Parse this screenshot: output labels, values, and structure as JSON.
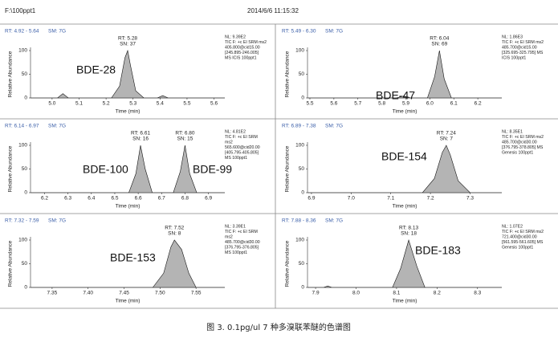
{
  "file": "F:\\100ppt1",
  "datetime": "2014/6/6 11:15:32",
  "caption": "图 3. 0.1pg/ul 7 种多溴联苯醚的色谱图",
  "chart_data": [
    {
      "type": "line",
      "range_label": "RT: 4.92 - 5.64",
      "sm_label": "SM: 7G",
      "ylabel": "Relative Abundance",
      "xlabel": "Time (min)",
      "color": "#b4b4b4",
      "xlim": [
        4.92,
        5.64
      ],
      "xticks": [
        {
          "value": 5,
          "label": "5.0"
        },
        5.1,
        5.2,
        5.3,
        5.4,
        5.5,
        5.6
      ],
      "ylim": [
        0,
        100
      ],
      "yticks": [
        0,
        50,
        100
      ],
      "x": [
        4.92,
        5.02,
        5.04,
        5.06,
        5.22,
        5.25,
        5.27,
        5.28,
        5.29,
        5.31,
        5.34,
        5.39,
        5.41,
        5.43,
        5.64
      ],
      "values": [
        0,
        0,
        9,
        0,
        0,
        25,
        85,
        100,
        70,
        15,
        0,
        0,
        5,
        0,
        0
      ],
      "peaks": [
        {
          "rt": 5.28,
          "rt_label": "RT: 5.28",
          "sn_label": "SN: 37"
        }
      ],
      "compounds": [
        "BDE-28"
      ],
      "info": [
        "NL: 9.39E2",
        "TIC F: +c EI SRM ms2",
        "405.800@cid15.00",
        "[245.895-246.005]",
        "MS ICIS 100ppt1"
      ]
    },
    {
      "type": "line",
      "range_label": "RT: 5.49 - 6.30",
      "sm_label": "SM: 7G",
      "ylabel": "Relative Abundance",
      "xlabel": "Time (min)",
      "color": "#b4b4b4",
      "xlim": [
        5.49,
        6.3
      ],
      "xticks": [
        5.5,
        5.6,
        5.7,
        5.8,
        5.9,
        {
          "value": 6,
          "label": "6.0"
        },
        6.1,
        6.2
      ],
      "ylim": [
        0,
        100
      ],
      "yticks": [
        0,
        50,
        100
      ],
      "x": [
        5.49,
        5.86,
        5.89,
        5.92,
        5.99,
        6.02,
        6.04,
        6.06,
        6.09,
        6.3
      ],
      "values": [
        0,
        0,
        4,
        0,
        0,
        45,
        100,
        40,
        0,
        0
      ],
      "peaks": [
        {
          "rt": 6.04,
          "rt_label": "RT: 6.04",
          "sn_label": "SN: 69"
        }
      ],
      "compounds": [
        "BDE-47"
      ],
      "info": [
        "NL: 1.86E3",
        "TIC F: +c EI SRM ms2",
        "485.700@cid15.00",
        "[325.695-325.795] MS",
        "ICIS 100ppt1"
      ]
    },
    {
      "type": "line",
      "range_label": "RT: 6.14 - 6.97",
      "sm_label": "SM: 7G",
      "ylabel": "Relative Abundance",
      "xlabel": "Time (min)",
      "color": "#b4b4b4",
      "xlim": [
        6.14,
        6.97
      ],
      "xticks": [
        6.2,
        6.3,
        6.4,
        6.5,
        6.6,
        6.7,
        6.8,
        6.9
      ],
      "ylim": [
        0,
        100
      ],
      "yticks": [
        0,
        50,
        100
      ],
      "x": [
        6.14,
        6.56,
        6.59,
        6.61,
        6.63,
        6.66,
        6.75,
        6.78,
        6.8,
        6.82,
        6.85,
        6.97
      ],
      "values": [
        0,
        0,
        40,
        100,
        50,
        0,
        0,
        45,
        100,
        40,
        0,
        0
      ],
      "peaks": [
        {
          "rt": 6.61,
          "rt_label": "RT: 6.61",
          "sn_label": "SN: 16"
        },
        {
          "rt": 6.8,
          "rt_label": "RT: 6.80",
          "sn_label": "SN: 15"
        }
      ],
      "compounds": [
        "BDE-100",
        "BDE-99"
      ],
      "info": [
        "NL: 4.81E2",
        "TIC F: +c EI SRM",
        "ms2",
        "565.600@cid20.00",
        "[405.795-405.805]",
        "MS 100ppt1"
      ]
    },
    {
      "type": "line",
      "range_label": "RT: 6.89 - 7.38",
      "sm_label": "SM: 7G",
      "ylabel": "Relative Abundance",
      "xlabel": "Time (min)",
      "color": "#b4b4b4",
      "xlim": [
        6.89,
        7.38
      ],
      "xticks": [
        6.9,
        {
          "value": 7,
          "label": "7.0"
        },
        7.1,
        7.2,
        7.3
      ],
      "ylim": [
        0,
        100
      ],
      "yticks": [
        0,
        50,
        100
      ],
      "x": [
        6.89,
        7.18,
        7.21,
        7.23,
        7.24,
        7.25,
        7.27,
        7.3,
        7.38
      ],
      "values": [
        0,
        0,
        30,
        85,
        100,
        80,
        25,
        0,
        0
      ],
      "peaks": [
        {
          "rt": 7.24,
          "rt_label": "RT: 7.24",
          "sn_label": "SN: 7"
        }
      ],
      "compounds": [
        "BDE-154"
      ],
      "info": [
        "NL: 8.35E1",
        "TIC F: +c EI SRM ms2",
        "485.700@cid30.00",
        "[376.795-378.805] MS",
        "Genesis 100ppt1"
      ]
    },
    {
      "type": "line",
      "range_label": "RT: 7.32 - 7.59",
      "sm_label": "SM: 7G",
      "ylabel": "Relative Abundance",
      "xlabel": "Time (min)",
      "color": "#b4b4b4",
      "xlim": [
        7.32,
        7.59
      ],
      "xticks": [
        7.35,
        {
          "value": 7.4,
          "label": "7.40"
        },
        7.45,
        {
          "value": 7.5,
          "label": "7.50"
        },
        7.55
      ],
      "ylim": [
        0,
        100
      ],
      "yticks": [
        0,
        50,
        100
      ],
      "x": [
        7.32,
        7.49,
        7.505,
        7.515,
        7.52,
        7.53,
        7.54,
        7.55,
        7.59
      ],
      "values": [
        0,
        0,
        30,
        85,
        100,
        80,
        30,
        0,
        0
      ],
      "peaks": [
        {
          "rt": 7.52,
          "rt_label": "RT: 7.52",
          "sn_label": "SN: 8"
        }
      ],
      "compounds": [
        "BDE-153"
      ],
      "info": [
        "NL: 3.39E1",
        "TIC F: +c EI SRM",
        "ms2",
        "485.700@cid30.00",
        "[376.795-376.805]",
        "MS 100ppt1"
      ]
    },
    {
      "type": "line",
      "range_label": "RT: 7.88 - 8.36",
      "sm_label": "SM: 7G",
      "ylabel": "Relative Abundance",
      "xlabel": "Time (min)",
      "color": "#b4b4b4",
      "xlim": [
        7.88,
        8.36
      ],
      "xticks": [
        7.9,
        {
          "value": 8,
          "label": "8.0"
        },
        8.1,
        8.2,
        8.3
      ],
      "ylim": [
        0,
        100
      ],
      "yticks": [
        0,
        50,
        100
      ],
      "x": [
        7.88,
        7.92,
        7.93,
        7.94,
        8.09,
        8.11,
        8.13,
        8.15,
        8.17,
        8.36
      ],
      "values": [
        0,
        0,
        3,
        0,
        0,
        40,
        100,
        45,
        0,
        0
      ],
      "peaks": [
        {
          "rt": 8.13,
          "rt_label": "RT: 8.13",
          "sn_label": "SN: 18"
        }
      ],
      "compounds": [
        "BDE-183"
      ],
      "info": [
        "NL: 1.07E2",
        "TIC F: +c EI SRM ms2",
        "721.400@cid30.00",
        "[561.595-561.605] MS",
        "Genesis 100ppt1"
      ]
    }
  ]
}
